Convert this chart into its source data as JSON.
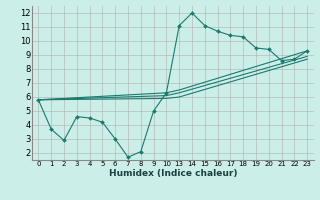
{
  "xlabel": "Humidex (Indice chaleur)",
  "bg_color": "#cceee8",
  "grid_color": "#b0b0b0",
  "line_color": "#1a7a6e",
  "series": [
    {
      "x": [
        0,
        1,
        2,
        3,
        4,
        5,
        6,
        7,
        8,
        9,
        10,
        13,
        14,
        15,
        16,
        17,
        18,
        19,
        20,
        21,
        22,
        23
      ],
      "y": [
        5.8,
        3.7,
        2.9,
        4.6,
        4.5,
        4.2,
        3.0,
        1.7,
        2.1,
        5.0,
        6.3,
        11.1,
        12.0,
        11.1,
        10.7,
        10.4,
        10.3,
        9.5,
        9.4,
        8.6,
        8.7,
        9.3
      ]
    },
    {
      "x": [
        0,
        10,
        13,
        23
      ],
      "y": [
        5.8,
        6.3,
        6.5,
        9.3
      ]
    },
    {
      "x": [
        0,
        10,
        13,
        23
      ],
      "y": [
        5.8,
        6.1,
        6.3,
        8.9
      ]
    },
    {
      "x": [
        0,
        10,
        13,
        23
      ],
      "y": [
        5.8,
        5.9,
        6.0,
        8.7
      ]
    }
  ],
  "xtick_positions": [
    0,
    1,
    2,
    3,
    4,
    5,
    6,
    7,
    8,
    9,
    10,
    13,
    14,
    15,
    16,
    17,
    18,
    19,
    20,
    21,
    22,
    23
  ],
  "xtick_labels": [
    "0",
    "1",
    "2",
    "3",
    "4",
    "5",
    "6",
    "7",
    "8",
    "9",
    "10",
    "13",
    "14",
    "15",
    "16",
    "17",
    "18",
    "19",
    "20",
    "21",
    "22",
    "23"
  ],
  "yticks": [
    2,
    3,
    4,
    5,
    6,
    7,
    8,
    9,
    10,
    11,
    12
  ],
  "xlim": [
    -0.5,
    23.5
  ],
  "ylim": [
    1.5,
    12.5
  ]
}
